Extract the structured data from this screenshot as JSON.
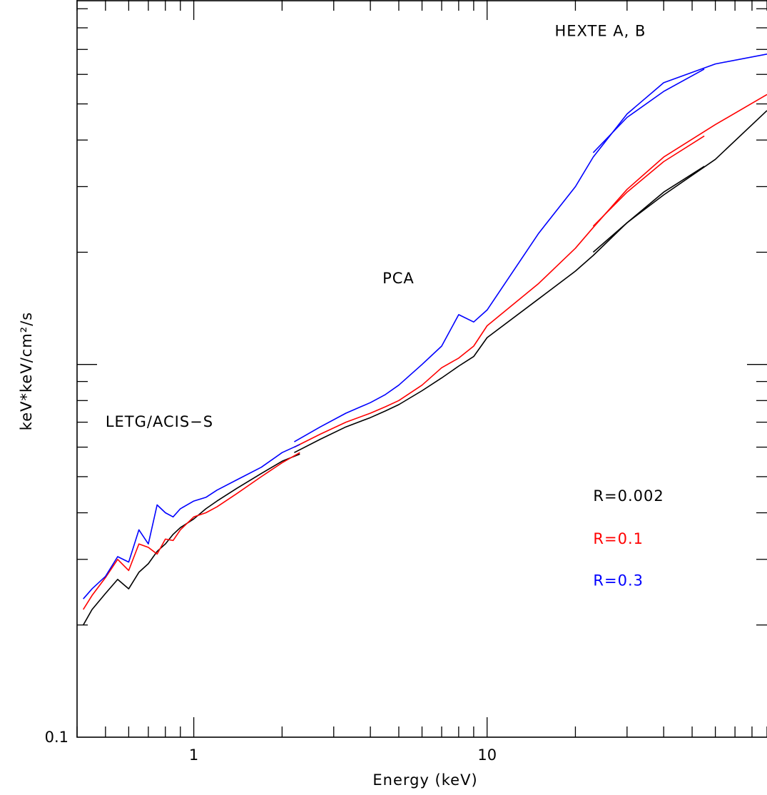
{
  "chart_data": {
    "type": "line",
    "title": "",
    "xlabel": "Energy (keV)",
    "ylabel": "keV*keV/cm²/s",
    "xscale": "log",
    "yscale": "log",
    "xlim": [
      0.4,
      90
    ],
    "ylim": [
      0.1,
      9.5
    ],
    "grid": false,
    "x_tick_labels": [
      {
        "value": 1,
        "label": "1"
      },
      {
        "value": 10,
        "label": "10"
      }
    ],
    "y_tick_labels": [
      {
        "value": 0.1,
        "label": "0.1"
      }
    ],
    "annotations": [
      {
        "text": "HEXTE A, B",
        "x": 17,
        "y": 7.6,
        "color": "#000000"
      },
      {
        "text": "PCA",
        "x": 4.4,
        "y": 1.65,
        "color": "#000000"
      },
      {
        "text": "LETG/ACIS−S",
        "x": 0.5,
        "y": 0.68,
        "color": "#000000"
      },
      {
        "text": "R=0.002",
        "x": 23,
        "y": 0.43,
        "color": "#000000"
      },
      {
        "text": "R=0.1",
        "x": 23,
        "y": 0.33,
        "color": "#ff0000"
      },
      {
        "text": "R=0.3",
        "x": 23,
        "y": 0.255,
        "color": "#0000ff"
      }
    ],
    "series": [
      {
        "color": "#000000",
        "segments": [
          {
            "x": [
              0.42,
              0.45,
              0.5,
              0.55,
              0.6,
              0.65,
              0.7,
              0.75,
              0.8,
              0.85,
              0.9,
              1.0,
              1.1,
              1.2,
              1.4,
              1.7,
              2.0,
              2.3
            ],
            "y": [
              0.2,
              0.22,
              0.243,
              0.265,
              0.25,
              0.277,
              0.292,
              0.315,
              0.33,
              0.35,
              0.365,
              0.385,
              0.41,
              0.43,
              0.465,
              0.51,
              0.55,
              0.575
            ]
          },
          {
            "x": [
              2.2,
              2.7,
              3.3,
              4.0,
              4.5,
              5.0,
              6.0,
              7.0,
              8.0,
              9.0,
              10.0,
              15.0,
              20.0,
              23.0,
              30.0,
              40.0,
              60.0,
              90.0
            ],
            "y": [
              0.58,
              0.63,
              0.68,
              0.72,
              0.75,
              0.78,
              0.85,
              0.92,
              0.99,
              1.05,
              1.18,
              1.5,
              1.78,
              1.96,
              2.4,
              2.85,
              3.55,
              4.8
            ]
          },
          {
            "x": [
              23.0,
              30.0,
              40.0,
              55.0
            ],
            "y": [
              2.0,
              2.4,
              2.9,
              3.4
            ]
          }
        ]
      },
      {
        "color": "#ff0000",
        "segments": [
          {
            "x": [
              0.42,
              0.45,
              0.5,
              0.55,
              0.6,
              0.65,
              0.7,
              0.75,
              0.8,
              0.85,
              0.9,
              1.0,
              1.1,
              1.2,
              1.4,
              1.7,
              2.0,
              2.3
            ],
            "y": [
              0.22,
              0.24,
              0.268,
              0.3,
              0.28,
              0.33,
              0.323,
              0.31,
              0.34,
              0.337,
              0.36,
              0.39,
              0.4,
              0.415,
              0.45,
              0.5,
              0.545,
              0.58
            ]
          },
          {
            "x": [
              2.2,
              2.7,
              3.3,
              4.0,
              4.5,
              5.0,
              6.0,
              7.0,
              8.0,
              9.0,
              10.0,
              15.0,
              20.0,
              23.0,
              30.0,
              40.0,
              60.0,
              90.0
            ],
            "y": [
              0.6,
              0.65,
              0.7,
              0.74,
              0.77,
              0.8,
              0.88,
              0.98,
              1.04,
              1.12,
              1.27,
              1.65,
              2.05,
              2.33,
              2.95,
              3.6,
              4.4,
              5.3
            ]
          },
          {
            "x": [
              23.0,
              30.0,
              40.0,
              55.0
            ],
            "y": [
              2.35,
              2.9,
              3.5,
              4.1
            ]
          }
        ]
      },
      {
        "color": "#0000ff",
        "segments": [
          {
            "x": [
              0.42,
              0.45,
              0.5,
              0.55,
              0.6,
              0.65,
              0.7,
              0.75,
              0.8,
              0.85,
              0.9,
              1.0,
              1.1,
              1.2,
              1.4,
              1.7,
              2.0,
              2.3
            ],
            "y": [
              0.235,
              0.25,
              0.27,
              0.305,
              0.295,
              0.36,
              0.33,
              0.42,
              0.4,
              0.39,
              0.41,
              0.43,
              0.44,
              0.46,
              0.49,
              0.53,
              0.58,
              0.61
            ]
          },
          {
            "x": [
              2.2,
              2.7,
              3.3,
              4.0,
              4.5,
              5.0,
              6.0,
              7.0,
              8.0,
              9.0,
              10.0,
              15.0,
              20.0,
              23.0,
              30.0,
              40.0,
              60.0,
              90.0
            ],
            "y": [
              0.62,
              0.68,
              0.74,
              0.79,
              0.83,
              0.88,
              1.0,
              1.12,
              1.36,
              1.3,
              1.4,
              2.25,
              3.0,
              3.6,
              4.7,
              5.7,
              6.4,
              6.8
            ]
          },
          {
            "x": [
              23.0,
              30.0,
              40.0,
              55.0
            ],
            "y": [
              3.7,
              4.6,
              5.4,
              6.2
            ]
          }
        ]
      }
    ]
  }
}
